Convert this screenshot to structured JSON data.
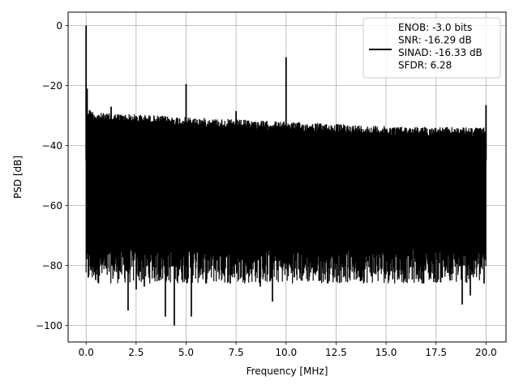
{
  "chart_data": {
    "type": "line",
    "title": "",
    "xlabel": "Frequency [MHz]",
    "ylabel": "PSD [dB]",
    "xlim": [
      -0.9,
      21.0
    ],
    "ylim": [
      -105.5,
      4.5
    ],
    "xticks": [
      0.0,
      2.5,
      5.0,
      7.5,
      10.0,
      12.5,
      15.0,
      17.5,
      20.0
    ],
    "xtick_labels": [
      "0.0",
      "2.5",
      "5.0",
      "7.5",
      "10.0",
      "12.5",
      "15.0",
      "17.5",
      "20.0"
    ],
    "yticks": [
      0,
      -20,
      -40,
      -60,
      -80,
      -100
    ],
    "ytick_labels": [
      "0",
      "−20",
      "−40",
      "−60",
      "−80",
      "−100"
    ],
    "grid": true,
    "legend_position": "top-right",
    "series": [
      {
        "name": "",
        "color": "#000000",
        "noise_floor": {
          "x_range": [
            0.0,
            20.0
          ],
          "upper_envelope_db": {
            "x": [
              0.0,
              0.5,
              2.5,
              5.0,
              10.0,
              15.0,
              20.0
            ],
            "y": [
              -27,
              -29,
              -29.5,
              -30.5,
              -32,
              -33.5,
              -34
            ]
          },
          "lower_envelope_db": {
            "x": [
              0.0,
              20.0
            ],
            "y": [
              -78,
              -78
            ]
          },
          "dips": [
            {
              "x": 0.1,
              "y": -84
            },
            {
              "x": 1.0,
              "y": -81
            },
            {
              "x": 2.1,
              "y": -95
            },
            {
              "x": 2.5,
              "y": -88
            },
            {
              "x": 2.9,
              "y": -87
            },
            {
              "x": 3.95,
              "y": -97
            },
            {
              "x": 4.4,
              "y": -100
            },
            {
              "x": 5.25,
              "y": -97
            },
            {
              "x": 6.0,
              "y": -86
            },
            {
              "x": 7.2,
              "y": -86
            },
            {
              "x": 8.7,
              "y": -87
            },
            {
              "x": 9.3,
              "y": -92
            },
            {
              "x": 10.4,
              "y": -84
            },
            {
              "x": 11.7,
              "y": -85
            },
            {
              "x": 13.8,
              "y": -85
            },
            {
              "x": 15.6,
              "y": -84
            },
            {
              "x": 17.2,
              "y": -84
            },
            {
              "x": 18.2,
              "y": -85
            },
            {
              "x": 18.8,
              "y": -93
            },
            {
              "x": 19.2,
              "y": -90
            },
            {
              "x": 19.9,
              "y": -86
            }
          ]
        },
        "peaks": [
          {
            "x": 0.0,
            "y": 0.0
          },
          {
            "x": 0.05,
            "y": -21
          },
          {
            "x": 1.25,
            "y": -27
          },
          {
            "x": 5.0,
            "y": -19.5
          },
          {
            "x": 7.5,
            "y": -28.5
          },
          {
            "x": 10.0,
            "y": -10.5
          },
          {
            "x": 20.0,
            "y": -26.5
          }
        ]
      }
    ],
    "legend": {
      "lines": [
        "ENOB: -3.0 bits",
        "SNR: -16.29 dB",
        "SINAD: -16.33 dB",
        "SFDR: 6.28"
      ]
    }
  }
}
